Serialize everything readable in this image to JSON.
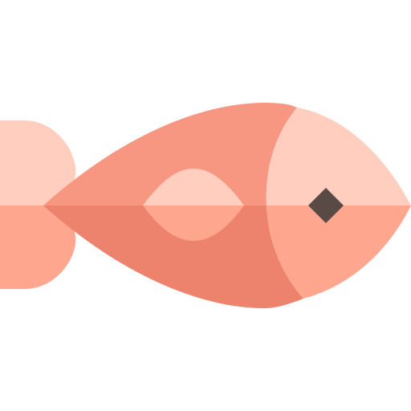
{
  "icon": {
    "name": "fish-icon",
    "colors": {
      "body_top": "#F79782",
      "body_bottom": "#ED826D",
      "head_top": "#FFCEBF",
      "head_bottom": "#FFA68E",
      "tail_top": "#FFCEBF",
      "tail_bottom": "#FFA68E",
      "fin_top": "#FFCEBF",
      "fin_bottom": "#FFA68E",
      "eye": "#5A4A46",
      "background": "#FFFFFF"
    }
  }
}
